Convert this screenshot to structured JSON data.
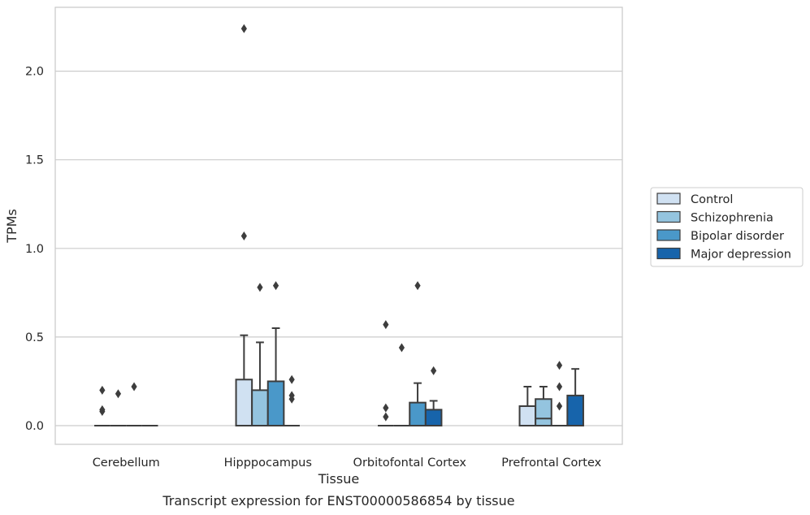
{
  "chart_data": {
    "type": "box",
    "title": "",
    "caption": "Transcript expression for ENST00000586854 by tissue",
    "xlabel": "Tissue",
    "ylabel": "TPMs",
    "ylim": [
      -0.11,
      2.36
    ],
    "yticks": [
      "0.0",
      "0.5",
      "1.0",
      "1.5",
      "2.0"
    ],
    "ytick_values": [
      0,
      0.5,
      1.0,
      1.5,
      2.0
    ],
    "grid": true,
    "legend_position": "right",
    "categories": [
      "Cerebellum",
      "Hipppocampus",
      "Orbitofontal Cortex",
      "Prefrontal Cortex"
    ],
    "series": [
      {
        "name": "Control",
        "color": "#d0e1f2",
        "boxes": [
          {
            "q1": 0,
            "median": 0,
            "q3": 0,
            "whisker_low": 0,
            "whisker_high": 0,
            "outliers": [
              0.2,
              0.09,
              0.08
            ]
          },
          {
            "q1": 0,
            "median": 0,
            "q3": 0.26,
            "whisker_low": 0,
            "whisker_high": 0.51,
            "outliers": [
              1.07
            ]
          },
          {
            "q1": 0,
            "median": 0,
            "q3": 0,
            "whisker_low": 0,
            "whisker_high": 0,
            "outliers": [
              0.57,
              0.1,
              0.05
            ]
          },
          {
            "q1": 0,
            "median": 0,
            "q3": 0.11,
            "whisker_low": 0,
            "whisker_high": 0.22,
            "outliers": []
          }
        ]
      },
      {
        "name": "Schizophrenia",
        "color": "#94c4df",
        "boxes": [
          {
            "q1": 0,
            "median": 0,
            "q3": 0,
            "whisker_low": 0,
            "whisker_high": 0,
            "outliers": [
              0.18
            ]
          },
          {
            "q1": 0,
            "median": 0,
            "q3": 0.2,
            "whisker_low": 0,
            "whisker_high": 0.47,
            "outliers": [
              0.78
            ]
          },
          {
            "q1": 0,
            "median": 0,
            "q3": 0,
            "whisker_low": 0,
            "whisker_high": 0,
            "outliers": [
              0.44
            ]
          },
          {
            "q1": 0,
            "median": 0.04,
            "q3": 0.15,
            "whisker_low": 0,
            "whisker_high": 0.22,
            "outliers": []
          }
        ]
      },
      {
        "name": "Bipolar disorder",
        "color": "#4a98c9",
        "boxes": [
          {
            "q1": 0,
            "median": 0,
            "q3": 0,
            "whisker_low": 0,
            "whisker_high": 0,
            "outliers": [
              0.22
            ]
          },
          {
            "q1": 0,
            "median": 0,
            "q3": 0.25,
            "whisker_low": 0,
            "whisker_high": 0.55,
            "outliers": [
              0.79
            ]
          },
          {
            "q1": 0,
            "median": 0,
            "q3": 0.13,
            "whisker_low": 0,
            "whisker_high": 0.24,
            "outliers": [
              0.79
            ]
          },
          {
            "q1": 0,
            "median": 0,
            "q3": 0,
            "whisker_low": 0,
            "whisker_high": 0,
            "outliers": [
              0.34,
              0.22,
              0.11
            ]
          }
        ]
      },
      {
        "name": "Major depression",
        "color": "#1764ab",
        "boxes": [
          {
            "q1": 0,
            "median": 0,
            "q3": 0,
            "whisker_low": 0,
            "whisker_high": 0,
            "outliers": []
          },
          {
            "q1": 0,
            "median": 0,
            "q3": 0,
            "whisker_low": 0,
            "whisker_high": 0,
            "outliers": [
              0.26,
              0.17,
              0.15
            ]
          },
          {
            "q1": 0,
            "median": 0,
            "q3": 0.09,
            "whisker_low": 0,
            "whisker_high": 0.14,
            "outliers": [
              0.31
            ]
          },
          {
            "q1": 0,
            "median": 0,
            "q3": 0.17,
            "whisker_low": 0,
            "whisker_high": 0.32,
            "outliers": []
          }
        ]
      }
    ],
    "extra_outliers": [
      {
        "category": "Hipppocampus",
        "series": "Control",
        "value": 2.24
      }
    ]
  }
}
